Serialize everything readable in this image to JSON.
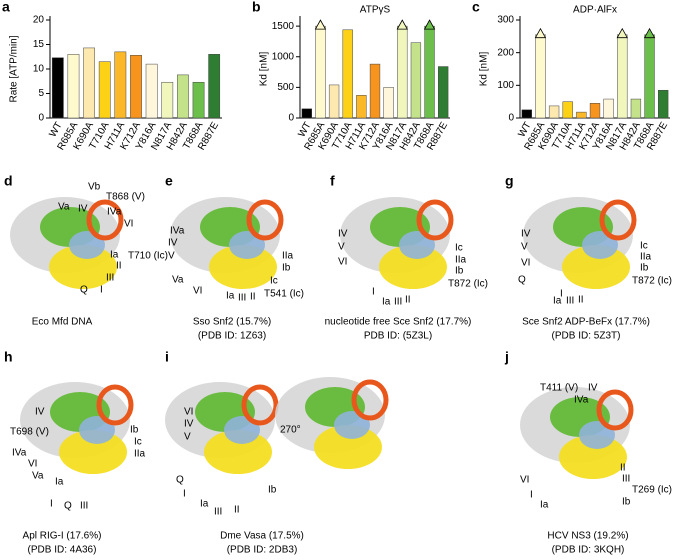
{
  "chart_data": [
    {
      "type": "bar",
      "panel": "a",
      "ylabel": "Rate [ATP/min]",
      "categories": [
        "WT",
        "R685A",
        "K690A",
        "T710A",
        "H711A",
        "K712A",
        "Y816A",
        "N817A",
        "H842A",
        "T868A",
        "R887E"
      ],
      "values": [
        12.3,
        13,
        14.3,
        11.5,
        13.5,
        12.8,
        11,
        7.3,
        8.8,
        7.3,
        13
      ],
      "colors": [
        "#000000",
        "#fffacd",
        "#fde8b0",
        "#fcd116",
        "#fbb829",
        "#f7941d",
        "#fff6dc",
        "#f1f6bd",
        "#c3e28a",
        "#6cbf4a",
        "#2e7d32"
      ],
      "ylim": [
        0,
        20
      ],
      "yticks": [
        0,
        5,
        10,
        15,
        20
      ]
    },
    {
      "type": "bar",
      "panel": "b",
      "title": "ATPγS",
      "ylabel": "Kd [nM]",
      "categories": [
        "WT",
        "R685A",
        "K690A",
        "T710A",
        "H711A",
        "K712A",
        "Y816A",
        "N817A",
        "H842A",
        "T868A",
        "R887E"
      ],
      "values": [
        150,
        1500,
        540,
        1440,
        370,
        880,
        500,
        1500,
        1230,
        1500,
        840
      ],
      "off_scale": [
        false,
        true,
        false,
        false,
        false,
        false,
        false,
        true,
        false,
        true,
        false
      ],
      "colors": [
        "#000000",
        "#fffacd",
        "#fde8b0",
        "#fcd116",
        "#fbb829",
        "#f7941d",
        "#fff6dc",
        "#f1f6bd",
        "#c3e28a",
        "#6cbf4a",
        "#2e7d32"
      ],
      "ylim": [
        0,
        1600
      ],
      "yticks": [
        0,
        500,
        1000,
        1500
      ]
    },
    {
      "type": "bar",
      "panel": "c",
      "title": "ADP·AlFx",
      "ylabel": "Kd [nM]",
      "categories": [
        "WT",
        "R685A",
        "K690A",
        "T710A",
        "H711A",
        "K712A",
        "Y816A",
        "N817A",
        "H842A",
        "T868A",
        "R887E"
      ],
      "values": [
        25,
        255,
        37,
        50,
        18,
        45,
        58,
        255,
        58,
        255,
        85
      ],
      "off_scale": [
        false,
        true,
        false,
        false,
        false,
        false,
        false,
        true,
        false,
        true,
        false
      ],
      "colors": [
        "#000000",
        "#fffacd",
        "#fde8b0",
        "#fcd116",
        "#fbb829",
        "#f7941d",
        "#fff6dc",
        "#f1f6bd",
        "#c3e28a",
        "#6cbf4a",
        "#2e7d32"
      ],
      "ylim": [
        0,
        300
      ],
      "yticks": [
        0,
        100,
        200,
        300
      ]
    }
  ],
  "panels": [
    {
      "letter": "d",
      "caption": [
        "Eco Mfd DNA"
      ],
      "labels": [
        {
          "text": "Va"
        },
        {
          "text": "Vb"
        },
        {
          "text": "T868 (V)",
          "color": "#3f86c4"
        },
        {
          "text": "IV",
          "color": "#3f86c4"
        },
        {
          "text": "IVa"
        },
        {
          "text": "VI"
        },
        {
          "text": "T710 (Ic)",
          "color": "#3f86c4"
        },
        {
          "text": "Ia"
        },
        {
          "text": "II"
        },
        {
          "text": "III"
        },
        {
          "text": "Q"
        },
        {
          "text": "I"
        }
      ]
    },
    {
      "letter": "e",
      "caption": [
        "Sso Snf2 (15.7%)",
        "(PDB ID: 1Z63)"
      ],
      "labels": [
        {
          "text": "IVa"
        },
        {
          "text": "IV"
        },
        {
          "text": "V"
        },
        {
          "text": "Va"
        },
        {
          "text": "VI"
        },
        {
          "text": "IIa",
          "color": "#3f86c4"
        },
        {
          "text": "Ib",
          "color": "#3f86c4"
        },
        {
          "text": "Ic",
          "color": "#3f86c4"
        },
        {
          "text": "T541 (Ic)",
          "color": "#3f86c4"
        },
        {
          "text": "Ia"
        },
        {
          "text": "III"
        },
        {
          "text": "II"
        }
      ]
    },
    {
      "letter": "f",
      "caption": [
        "nucleotide free Sce Snf2 (17.7%)",
        "PDB ID: (5Z3L)"
      ],
      "labels": [
        {
          "text": "IV"
        },
        {
          "text": "V"
        },
        {
          "text": "VI"
        },
        {
          "text": "Ic",
          "color": "#3f86c4"
        },
        {
          "text": "IIa",
          "color": "#3f86c4"
        },
        {
          "text": "Ib",
          "color": "#3f86c4"
        },
        {
          "text": "T872 (Ic)",
          "color": "#3f86c4"
        },
        {
          "text": "I"
        },
        {
          "text": "Ia"
        },
        {
          "text": "III"
        },
        {
          "text": "II"
        }
      ]
    },
    {
      "letter": "g",
      "caption": [
        "Sce Snf2 ADP-BeFx (17.7%)",
        "(PDB ID: 5Z3T)"
      ],
      "labels": [
        {
          "text": "IV"
        },
        {
          "text": "V"
        },
        {
          "text": "VI"
        },
        {
          "text": "Q"
        },
        {
          "text": "Ic",
          "color": "#3f86c4"
        },
        {
          "text": "IIa",
          "color": "#3f86c4"
        },
        {
          "text": "Ib",
          "color": "#3f86c4"
        },
        {
          "text": "T872 (Ic)",
          "color": "#3f86c4"
        },
        {
          "text": "I"
        },
        {
          "text": "Ia"
        },
        {
          "text": "III"
        },
        {
          "text": "II"
        }
      ]
    },
    {
      "letter": "h",
      "caption": [
        "Apl RIG-I (17.6%)",
        "(PDB ID: 4A36)"
      ],
      "labels": [
        {
          "text": "IV",
          "color": "#3f86c4"
        },
        {
          "text": "T698 (V)",
          "color": "#3f86c4"
        },
        {
          "text": "IVa"
        },
        {
          "text": "VI"
        },
        {
          "text": "Va"
        },
        {
          "text": "Ib",
          "color": "#3f86c4"
        },
        {
          "text": "Ic",
          "color": "#3f86c4"
        },
        {
          "text": "IIa",
          "color": "#3f86c4"
        },
        {
          "text": "Ia",
          "color": "#3f86c4"
        },
        {
          "text": "I"
        },
        {
          "text": "Q"
        },
        {
          "text": "III"
        }
      ]
    },
    {
      "letter": "i",
      "caption": [
        "Dme Vasa (17.5%)",
        "(PDB ID: 2DB3)"
      ],
      "labels": [
        {
          "text": "VI"
        },
        {
          "text": "IV"
        },
        {
          "text": "V"
        },
        {
          "text": "270°"
        },
        {
          "text": "Q"
        },
        {
          "text": "I"
        },
        {
          "text": "Ia",
          "color": "#3f86c4"
        },
        {
          "text": "III"
        },
        {
          "text": "II"
        },
        {
          "text": "Ib",
          "color": "#3f86c4"
        }
      ]
    },
    {
      "letter": "j",
      "caption": [
        "HCV NS3 (19.2%)",
        "(PDB ID: 3KQH)"
      ],
      "labels": [
        {
          "text": "T411 (V)",
          "color": "#3f86c4"
        },
        {
          "text": "IVa"
        },
        {
          "text": "IV",
          "color": "#3f86c4"
        },
        {
          "text": "II"
        },
        {
          "text": "III"
        },
        {
          "text": "T269 (Ic)",
          "color": "#3f86c4"
        },
        {
          "text": "Ib",
          "color": "#3f86c4"
        },
        {
          "text": "VI"
        },
        {
          "text": "I"
        },
        {
          "text": "Ia"
        }
      ]
    }
  ]
}
